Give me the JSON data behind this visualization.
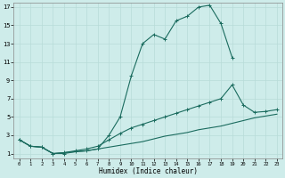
{
  "xlabel": "Humidex (Indice chaleur)",
  "background_color": "#ceecea",
  "grid_color": "#b8dbd8",
  "line_color": "#1a6b5e",
  "xlim": [
    -0.5,
    23.5
  ],
  "ylim": [
    0.5,
    17.5
  ],
  "xticks": [
    0,
    1,
    2,
    3,
    4,
    5,
    6,
    7,
    8,
    9,
    10,
    11,
    12,
    13,
    14,
    15,
    16,
    17,
    18,
    19,
    20,
    21,
    22,
    23
  ],
  "yticks": [
    1,
    3,
    5,
    7,
    9,
    11,
    13,
    15,
    17
  ],
  "series1_x": [
    0,
    1,
    2,
    3,
    4,
    5,
    6,
    7,
    8,
    9,
    10,
    11,
    12,
    13,
    14,
    15,
    16,
    17,
    18,
    19
  ],
  "series1_y": [
    2.5,
    1.8,
    1.7,
    1.0,
    1.0,
    1.2,
    1.3,
    1.5,
    3.0,
    5.0,
    9.5,
    13.0,
    14.0,
    13.5,
    15.5,
    16.0,
    17.0,
    17.2,
    15.2,
    11.5
  ],
  "series2_x": [
    0,
    1,
    2,
    3,
    4,
    5,
    6,
    7,
    8,
    9,
    10,
    11,
    12,
    13,
    14,
    15,
    16,
    17,
    18,
    19,
    20,
    21,
    22,
    23
  ],
  "series2_y": [
    2.5,
    1.8,
    1.7,
    1.0,
    1.1,
    1.3,
    1.5,
    1.8,
    2.5,
    3.2,
    3.8,
    4.2,
    4.6,
    5.0,
    5.4,
    5.8,
    6.2,
    6.6,
    7.0,
    8.5,
    6.3,
    5.5,
    5.6,
    5.8
  ],
  "series3_x": [
    0,
    1,
    2,
    3,
    4,
    5,
    6,
    7,
    8,
    9,
    10,
    11,
    12,
    13,
    14,
    15,
    16,
    17,
    18,
    19,
    20,
    21,
    22,
    23
  ],
  "series3_y": [
    2.5,
    1.8,
    1.7,
    1.0,
    1.1,
    1.2,
    1.3,
    1.5,
    1.7,
    1.9,
    2.1,
    2.3,
    2.6,
    2.9,
    3.1,
    3.3,
    3.6,
    3.8,
    4.0,
    4.3,
    4.6,
    4.9,
    5.1,
    5.3
  ]
}
